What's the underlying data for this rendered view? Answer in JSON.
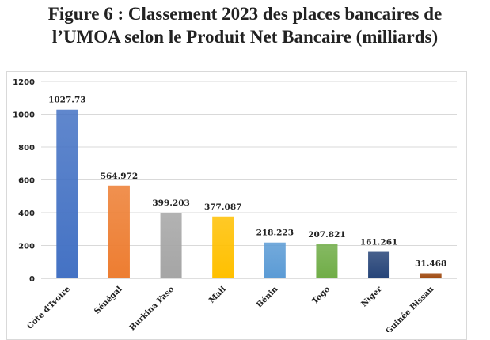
{
  "title_line1": "Figure 6 : Classement 2023 des places bancaires de",
  "title_line2": "l’UMOA selon le Produit Net Bancaire (milliards)",
  "chart_data": {
    "type": "bar",
    "title": "Figure 6 : Classement 2023 des places bancaires de l’UMOA selon le Produit Net Bancaire (milliards)",
    "categories": [
      "Côte d'Ivoire",
      "Sénégal",
      "Burkina Faso",
      "Mali",
      "Bénin",
      "Togo",
      "Niger",
      "Guinée Bissau"
    ],
    "values": [
      1027.73,
      564.972,
      399.203,
      377.087,
      218.223,
      207.821,
      161.261,
      31.468
    ],
    "data_labels": [
      "1027.73",
      "564.972",
      "399.203",
      "377.087",
      "218.223",
      "207.821",
      "161.261",
      "31.468"
    ],
    "colors": [
      "#4472c4",
      "#ed7d31",
      "#a5a5a5",
      "#ffc000",
      "#5b9bd5",
      "#70ad47",
      "#264478",
      "#9e480e"
    ],
    "yticks": [
      "0",
      "200",
      "400",
      "600",
      "800",
      "1000",
      "1200"
    ],
    "ylim": [
      0,
      1200
    ],
    "grid": true,
    "legend": "none",
    "xlabel": "",
    "ylabel": ""
  }
}
